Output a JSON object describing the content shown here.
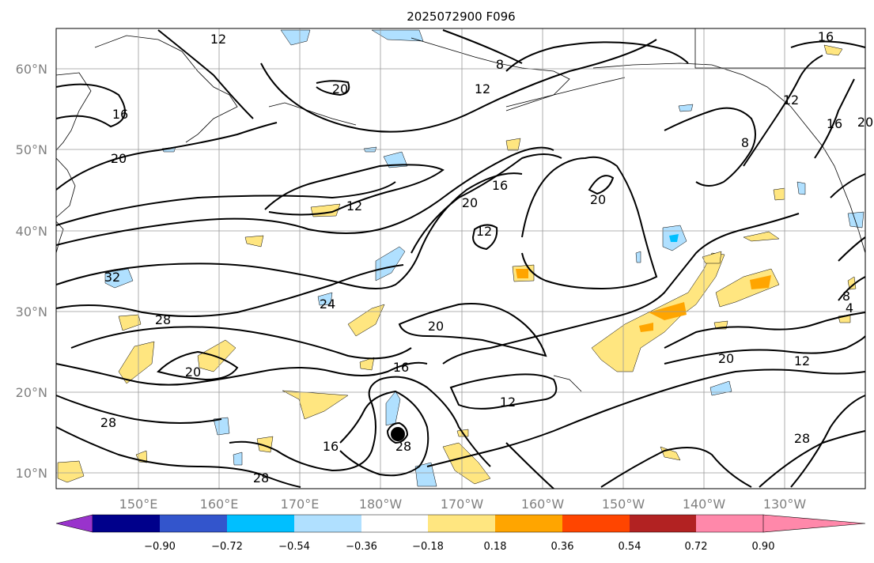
{
  "title": "2025072900 F096",
  "map": {
    "lat_ticks": [
      "60°N",
      "50°N",
      "40°N",
      "30°N",
      "20°N",
      "10°N"
    ],
    "lon_ticks": [
      "150°E",
      "160°E",
      "170°E",
      "180°W",
      "170°W",
      "160°W",
      "150°W",
      "140°W",
      "130°W"
    ],
    "contour_labels": [
      "12",
      "16",
      "8",
      "16",
      "20",
      "20",
      "12",
      "20",
      "16",
      "12",
      "20",
      "8",
      "16",
      "12",
      "20",
      "12",
      "20",
      "32",
      "24",
      "28",
      "20",
      "20",
      "16",
      "12",
      "8",
      "12",
      "4",
      "28",
      "16",
      "28",
      "28",
      "28"
    ],
    "marker": "storm-center-dot"
  },
  "colorbar": {
    "colors": [
      "#9933cc",
      "#00008b",
      "#3355cc",
      "#00bfff",
      "#b0e0ff",
      "#ffffff",
      "#ffe680",
      "#ffa500",
      "#ff4500",
      "#b22222",
      "#ff88aa"
    ],
    "ticks": [
      "−0.90",
      "−0.72",
      "−0.54",
      "−0.36",
      "−0.18",
      "0.18",
      "0.36",
      "0.54",
      "0.72",
      "0.90"
    ]
  }
}
